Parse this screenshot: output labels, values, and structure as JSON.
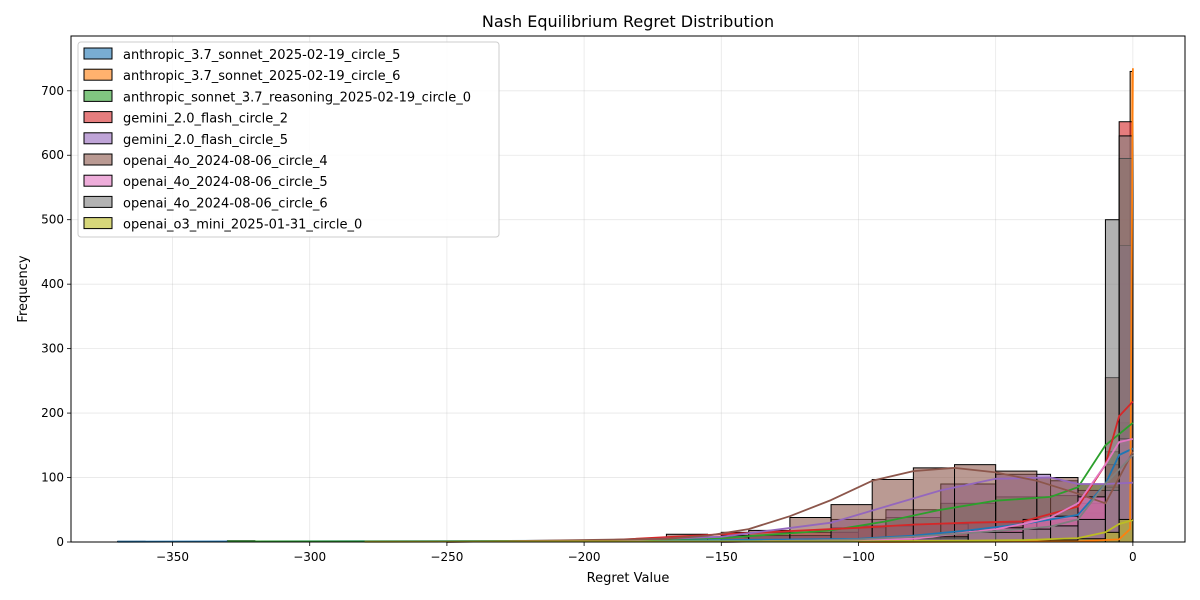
{
  "chart_data": {
    "type": "histogram",
    "title": "Nash Equilibrium Regret Distribution",
    "xlabel": "Regret Value",
    "ylabel": "Frequency",
    "xlim": [
      -387,
      19
    ],
    "ylim": [
      0,
      785
    ],
    "xticks": [
      -350,
      -300,
      -250,
      -200,
      -150,
      -100,
      -50,
      0
    ],
    "yticks": [
      0,
      100,
      200,
      300,
      400,
      500,
      600,
      700
    ],
    "grid": true,
    "legend_position": "upper-left",
    "kde": true,
    "series": [
      {
        "name": "anthropic_3.7_sonnet_2025-02-19_circle_5",
        "color": "#1f77b4",
        "bins": [
          [
            -370,
            -360,
            1
          ],
          [
            -200,
            -150,
            3
          ],
          [
            -150,
            -100,
            5
          ],
          [
            -100,
            -80,
            4
          ],
          [
            -80,
            -60,
            8
          ],
          [
            -60,
            -40,
            15
          ],
          [
            -40,
            -20,
            30
          ],
          [
            -20,
            -10,
            45
          ],
          [
            -10,
            -5,
            80
          ],
          [
            -5,
            0,
            150
          ]
        ],
        "kde": [
          [
            -370,
            0.5
          ],
          [
            -200,
            2
          ],
          [
            -150,
            3
          ],
          [
            -100,
            5
          ],
          [
            -80,
            10
          ],
          [
            -60,
            18
          ],
          [
            -40,
            28
          ],
          [
            -20,
            42
          ],
          [
            -10,
            90
          ],
          [
            -5,
            135
          ],
          [
            0,
            145
          ]
        ]
      },
      {
        "name": "anthropic_3.7_sonnet_2025-02-19_circle_6",
        "color": "#ff7f0e",
        "bins": [
          [
            -20,
            -10,
            2
          ],
          [
            -10,
            -5,
            4
          ],
          [
            -5,
            -1,
            6
          ],
          [
            -1,
            0,
            730
          ]
        ],
        "kde": [
          [
            -100,
            0
          ],
          [
            -20,
            1
          ],
          [
            -5,
            4
          ],
          [
            -1,
            20
          ],
          [
            0,
            735
          ]
        ]
      },
      {
        "name": "anthropic_sonnet_3.7_reasoning_2025-02-19_circle_0",
        "color": "#2ca02c",
        "bins": [
          [
            -330,
            -320,
            2
          ],
          [
            -300,
            -200,
            1
          ],
          [
            -200,
            -150,
            3
          ],
          [
            -150,
            -110,
            8
          ],
          [
            -110,
            -90,
            22
          ],
          [
            -90,
            -70,
            38
          ],
          [
            -70,
            -50,
            60
          ],
          [
            -50,
            -30,
            70
          ],
          [
            -30,
            -20,
            72
          ],
          [
            -20,
            -10,
            90
          ],
          [
            -10,
            -5,
            140
          ],
          [
            -5,
            0,
            185
          ]
        ],
        "kde": [
          [
            -330,
            1
          ],
          [
            -250,
            1
          ],
          [
            -200,
            2
          ],
          [
            -150,
            6
          ],
          [
            -110,
            18
          ],
          [
            -90,
            32
          ],
          [
            -70,
            50
          ],
          [
            -50,
            64
          ],
          [
            -30,
            70
          ],
          [
            -20,
            85
          ],
          [
            -10,
            150
          ],
          [
            0,
            185
          ]
        ]
      },
      {
        "name": "gemini_2.0_flash_circle_2",
        "color": "#d62728",
        "bins": [
          [
            -150,
            -100,
            15
          ],
          [
            -100,
            -80,
            25
          ],
          [
            -80,
            -60,
            28
          ],
          [
            -60,
            -40,
            30
          ],
          [
            -40,
            -20,
            35
          ],
          [
            -20,
            -10,
            60
          ],
          [
            -10,
            -5,
            120
          ],
          [
            -5,
            0,
            652
          ]
        ],
        "kde": [
          [
            -200,
            1
          ],
          [
            -150,
            12
          ],
          [
            -100,
            22
          ],
          [
            -80,
            27
          ],
          [
            -60,
            30
          ],
          [
            -40,
            32
          ],
          [
            -20,
            55
          ],
          [
            -10,
            120
          ],
          [
            -5,
            195
          ],
          [
            0,
            218
          ]
        ]
      },
      {
        "name": "gemini_2.0_flash_circle_5",
        "color": "#9467bd",
        "bins": [
          [
            -150,
            -110,
            10
          ],
          [
            -110,
            -90,
            35
          ],
          [
            -90,
            -70,
            50
          ],
          [
            -70,
            -50,
            90
          ],
          [
            -50,
            -30,
            105
          ],
          [
            -30,
            -20,
            95
          ],
          [
            -20,
            -10,
            80
          ],
          [
            -10,
            -5,
            85
          ],
          [
            -5,
            0,
            460
          ]
        ],
        "kde": [
          [
            -200,
            1
          ],
          [
            -150,
            8
          ],
          [
            -110,
            30
          ],
          [
            -90,
            55
          ],
          [
            -70,
            80
          ],
          [
            -50,
            98
          ],
          [
            -30,
            100
          ],
          [
            -20,
            90
          ],
          [
            -10,
            90
          ],
          [
            0,
            92
          ]
        ]
      },
      {
        "name": "openai_4o_2024-08-06_circle_4",
        "color": "#8c564b",
        "bins": [
          [
            -170,
            -155,
            12
          ],
          [
            -155,
            -140,
            8
          ],
          [
            -140,
            -125,
            18
          ],
          [
            -125,
            -110,
            38
          ],
          [
            -110,
            -95,
            58
          ],
          [
            -95,
            -80,
            97
          ],
          [
            -80,
            -65,
            115
          ],
          [
            -65,
            -50,
            120
          ],
          [
            -50,
            -35,
            110
          ],
          [
            -35,
            -20,
            100
          ],
          [
            -20,
            -10,
            90
          ],
          [
            -10,
            -5,
            255
          ],
          [
            -5,
            0,
            595
          ]
        ],
        "kde": [
          [
            -250,
            0
          ],
          [
            -170,
            5
          ],
          [
            -155,
            10
          ],
          [
            -140,
            20
          ],
          [
            -125,
            40
          ],
          [
            -110,
            65
          ],
          [
            -95,
            95
          ],
          [
            -80,
            110
          ],
          [
            -65,
            115
          ],
          [
            -50,
            108
          ],
          [
            -35,
            95
          ],
          [
            -20,
            75
          ],
          [
            -10,
            60
          ],
          [
            0,
            140
          ]
        ]
      },
      {
        "name": "openai_4o_2024-08-06_circle_5",
        "color": "#e377c2",
        "bins": [
          [
            -80,
            -60,
            5
          ],
          [
            -60,
            -50,
            18
          ],
          [
            -50,
            -40,
            22
          ],
          [
            -40,
            -30,
            35
          ],
          [
            -30,
            -20,
            40
          ],
          [
            -20,
            -10,
            70
          ],
          [
            -10,
            -5,
            80
          ],
          [
            -5,
            0,
            160
          ]
        ],
        "kde": [
          [
            -150,
            0
          ],
          [
            -80,
            5
          ],
          [
            -60,
            15
          ],
          [
            -50,
            20
          ],
          [
            -40,
            28
          ],
          [
            -30,
            38
          ],
          [
            -20,
            60
          ],
          [
            -10,
            120
          ],
          [
            -5,
            155
          ],
          [
            0,
            160
          ]
        ]
      },
      {
        "name": "openai_4o_2024-08-06_circle_6",
        "color": "#7f7f7f",
        "bins": [
          [
            -100,
            -80,
            5
          ],
          [
            -80,
            -60,
            8
          ],
          [
            -60,
            -40,
            15
          ],
          [
            -40,
            -30,
            20
          ],
          [
            -30,
            -20,
            25
          ],
          [
            -20,
            -10,
            35
          ],
          [
            -10,
            -5,
            500
          ],
          [
            -5,
            0,
            630
          ]
        ],
        "kde": [
          [
            -150,
            0
          ],
          [
            -100,
            4
          ],
          [
            -80,
            8
          ],
          [
            -60,
            14
          ],
          [
            -40,
            20
          ],
          [
            -30,
            24
          ],
          [
            -20,
            35
          ],
          [
            -10,
            90
          ],
          [
            0,
            135
          ]
        ]
      },
      {
        "name": "openai_o3_mini_2025-01-31_circle_0",
        "color": "#bcbd22",
        "bins": [
          [
            -280,
            -260,
            1
          ],
          [
            -60,
            -40,
            2
          ],
          [
            -40,
            -20,
            3
          ],
          [
            -20,
            -10,
            5
          ],
          [
            -10,
            -5,
            15
          ],
          [
            -5,
            0,
            35
          ]
        ],
        "kde": [
          [
            -280,
            0.5
          ],
          [
            -200,
            1
          ],
          [
            -100,
            1
          ],
          [
            -60,
            2
          ],
          [
            -40,
            3
          ],
          [
            -20,
            6
          ],
          [
            -10,
            15
          ],
          [
            -5,
            28
          ],
          [
            0,
            34
          ]
        ]
      }
    ]
  }
}
